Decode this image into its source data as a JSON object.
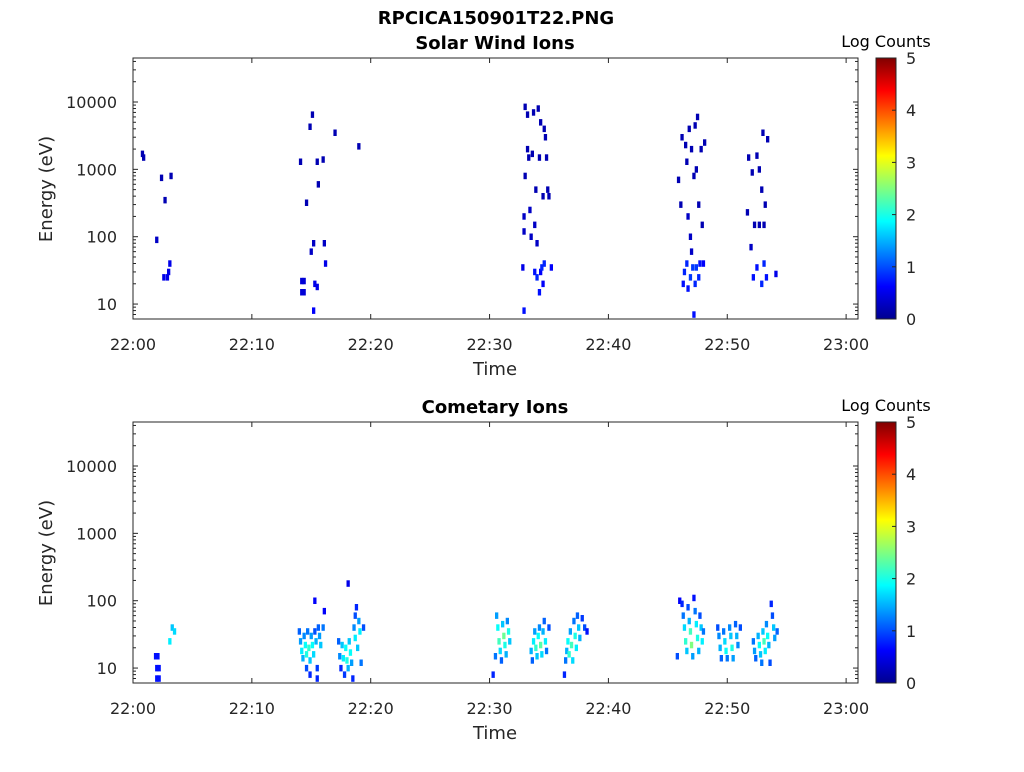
{
  "figure": {
    "title": "RPCICA150901T22.PNG"
  },
  "colorbar": {
    "label": "Log Counts",
    "ticks": [
      "0",
      "1",
      "2",
      "3",
      "4",
      "5"
    ],
    "range": [
      0,
      5
    ],
    "colormap": "jet"
  },
  "chart_data": [
    {
      "type": "heatmap",
      "title": "Solar Wind Ions",
      "xlabel": "Time",
      "ylabel": "Energy (eV)",
      "x_ticks": [
        "22:00",
        "22:10",
        "22:20",
        "22:30",
        "22:40",
        "22:50",
        "23:00"
      ],
      "xlim_minutes": [
        0,
        61
      ],
      "y_scale": "log",
      "y_ticks": [
        "10",
        "100",
        "1000",
        "10000"
      ],
      "ylim": [
        6,
        45000
      ],
      "cells": [
        [
          0.8,
          1700,
          0.2
        ],
        [
          0.9,
          1500,
          0.2
        ],
        [
          2.0,
          90,
          0.3
        ],
        [
          2.4,
          750,
          0.2
        ],
        [
          2.6,
          25,
          0.5
        ],
        [
          2.7,
          350,
          0.2
        ],
        [
          2.9,
          25,
          0.5
        ],
        [
          3.0,
          30,
          0.5
        ],
        [
          3.1,
          40,
          0.5
        ],
        [
          3.2,
          800,
          0.2
        ],
        [
          14.1,
          1300,
          0.2
        ],
        [
          14.2,
          22,
          0.4
        ],
        [
          14.2,
          15,
          0.4
        ],
        [
          14.4,
          22,
          0.4
        ],
        [
          14.4,
          15,
          0.4
        ],
        [
          14.6,
          320,
          0.2
        ],
        [
          14.9,
          4300,
          0.2
        ],
        [
          15.0,
          60,
          0.3
        ],
        [
          15.1,
          6500,
          0.2
        ],
        [
          15.2,
          8,
          0.6
        ],
        [
          15.2,
          80,
          0.3
        ],
        [
          15.3,
          20,
          0.5
        ],
        [
          15.5,
          18,
          0.5
        ],
        [
          15.5,
          1300,
          0.2
        ],
        [
          15.6,
          600,
          0.2
        ],
        [
          16.0,
          1400,
          0.2
        ],
        [
          16.1,
          80,
          0.3
        ],
        [
          16.2,
          40,
          0.5
        ],
        [
          17.0,
          3500,
          0.2
        ],
        [
          19.0,
          2200,
          0.2
        ],
        [
          32.8,
          35,
          0.5
        ],
        [
          32.9,
          8,
          0.7
        ],
        [
          32.9,
          120,
          0.3
        ],
        [
          32.9,
          200,
          0.3
        ],
        [
          33.0,
          800,
          0.2
        ],
        [
          33.0,
          8500,
          0.2
        ],
        [
          33.2,
          6500,
          0.2
        ],
        [
          33.2,
          2000,
          0.2
        ],
        [
          33.3,
          1500,
          0.2
        ],
        [
          33.4,
          250,
          0.3
        ],
        [
          33.5,
          100,
          0.3
        ],
        [
          33.6,
          1700,
          0.2
        ],
        [
          33.7,
          7000,
          0.2
        ],
        [
          33.8,
          30,
          0.7
        ],
        [
          33.8,
          150,
          0.3
        ],
        [
          33.9,
          500,
          0.2
        ],
        [
          34.0,
          25,
          0.8
        ],
        [
          34.0,
          80,
          0.3
        ],
        [
          34.1,
          8000,
          0.2
        ],
        [
          34.2,
          15,
          0.7
        ],
        [
          34.2,
          1500,
          0.2
        ],
        [
          34.3,
          30,
          0.6
        ],
        [
          34.3,
          5000,
          0.2
        ],
        [
          34.4,
          35,
          0.8
        ],
        [
          34.5,
          20,
          0.6
        ],
        [
          34.5,
          400,
          0.2
        ],
        [
          34.6,
          40,
          0.8
        ],
        [
          34.6,
          4000,
          0.2
        ],
        [
          34.7,
          3000,
          0.2
        ],
        [
          34.8,
          1500,
          0.2
        ],
        [
          34.9,
          500,
          0.2
        ],
        [
          35.0,
          400,
          0.2
        ],
        [
          35.2,
          35,
          0.6
        ],
        [
          45.9,
          700,
          0.2
        ],
        [
          46.1,
          300,
          0.2
        ],
        [
          46.2,
          3000,
          0.2
        ],
        [
          46.3,
          20,
          0.7
        ],
        [
          46.4,
          30,
          0.8
        ],
        [
          46.5,
          2300,
          0.2
        ],
        [
          46.6,
          1300,
          0.2
        ],
        [
          46.6,
          40,
          0.8
        ],
        [
          46.7,
          17,
          0.7
        ],
        [
          46.7,
          200,
          0.3
        ],
        [
          46.8,
          4000,
          0.2
        ],
        [
          46.9,
          25,
          0.9
        ],
        [
          46.9,
          100,
          0.3
        ],
        [
          47.0,
          2000,
          0.2
        ],
        [
          47.0,
          60,
          0.3
        ],
        [
          47.1,
          35,
          0.9
        ],
        [
          47.2,
          800,
          0.2
        ],
        [
          47.2,
          7,
          0.7
        ],
        [
          47.3,
          20,
          0.8
        ],
        [
          47.3,
          4500,
          0.2
        ],
        [
          47.4,
          35,
          0.9
        ],
        [
          47.4,
          1000,
          0.2
        ],
        [
          47.5,
          6000,
          0.2
        ],
        [
          47.6,
          25,
          0.8
        ],
        [
          47.6,
          300,
          0.2
        ],
        [
          47.7,
          40,
          0.7
        ],
        [
          47.8,
          2000,
          0.2
        ],
        [
          47.9,
          150,
          0.2
        ],
        [
          48.0,
          40,
          0.6
        ],
        [
          48.1,
          2500,
          0.2
        ],
        [
          51.7,
          230,
          0.2
        ],
        [
          51.8,
          1500,
          0.2
        ],
        [
          52.0,
          70,
          0.3
        ],
        [
          52.1,
          900,
          0.2
        ],
        [
          52.2,
          25,
          0.7
        ],
        [
          52.3,
          150,
          0.2
        ],
        [
          52.5,
          1600,
          0.2
        ],
        [
          52.5,
          35,
          0.7
        ],
        [
          52.7,
          1000,
          0.2
        ],
        [
          52.7,
          150,
          0.2
        ],
        [
          52.9,
          20,
          0.8
        ],
        [
          52.9,
          500,
          0.2
        ],
        [
          53.0,
          3500,
          0.2
        ],
        [
          53.1,
          40,
          0.8
        ],
        [
          53.1,
          150,
          0.2
        ],
        [
          53.2,
          300,
          0.2
        ],
        [
          53.3,
          25,
          0.7
        ],
        [
          53.4,
          2800,
          0.2
        ],
        [
          54.1,
          28,
          0.5
        ]
      ]
    },
    {
      "type": "heatmap",
      "title": "Cometary Ions",
      "xlabel": "Time",
      "ylabel": "Energy (eV)",
      "x_ticks": [
        "22:00",
        "22:10",
        "22:20",
        "22:30",
        "22:40",
        "22:50",
        "23:00"
      ],
      "xlim_minutes": [
        0,
        61
      ],
      "y_scale": "log",
      "y_ticks": [
        "10",
        "100",
        "1000",
        "10000"
      ],
      "ylim": [
        6,
        45000
      ],
      "cells": [
        [
          1.9,
          15,
          0.7
        ],
        [
          2.0,
          10,
          0.7
        ],
        [
          2.0,
          7,
          0.7
        ],
        [
          2.1,
          15,
          0.7
        ],
        [
          2.2,
          10,
          0.7
        ],
        [
          2.2,
          7,
          0.7
        ],
        [
          3.1,
          25,
          1.8
        ],
        [
          3.3,
          40,
          1.6
        ],
        [
          3.5,
          35,
          1.7
        ],
        [
          14.0,
          35,
          1.1
        ],
        [
          14.1,
          25,
          1.4
        ],
        [
          14.2,
          18,
          1.8
        ],
        [
          14.3,
          14,
          1.5
        ],
        [
          14.4,
          30,
          1.3
        ],
        [
          14.5,
          22,
          1.9
        ],
        [
          14.6,
          16,
          2.0
        ],
        [
          14.6,
          10,
          1.0
        ],
        [
          14.7,
          35,
          1.2
        ],
        [
          14.8,
          20,
          2.1
        ],
        [
          14.9,
          13,
          1.6
        ],
        [
          14.9,
          8,
          0.8
        ],
        [
          15.0,
          30,
          1.4
        ],
        [
          15.1,
          22,
          1.9
        ],
        [
          15.2,
          16,
          1.7
        ],
        [
          15.3,
          35,
          1.0
        ],
        [
          15.3,
          100,
          0.6
        ],
        [
          15.4,
          25,
          1.5
        ],
        [
          15.5,
          10,
          0.9
        ],
        [
          15.5,
          7,
          0.8
        ],
        [
          15.6,
          40,
          1.1
        ],
        [
          15.7,
          30,
          1.4
        ],
        [
          15.8,
          22,
          1.6
        ],
        [
          16.0,
          40,
          1.2
        ],
        [
          16.1,
          70,
          0.6
        ],
        [
          17.3,
          25,
          1.1
        ],
        [
          17.4,
          15,
          1.3
        ],
        [
          17.5,
          10,
          0.8
        ],
        [
          17.6,
          22,
          1.6
        ],
        [
          17.7,
          14,
          1.8
        ],
        [
          17.8,
          8,
          0.9
        ],
        [
          17.9,
          20,
          1.9
        ],
        [
          18.0,
          13,
          2.0
        ],
        [
          18.1,
          180,
          0.5
        ],
        [
          18.1,
          10,
          1.5
        ],
        [
          18.2,
          25,
          1.6
        ],
        [
          18.3,
          17,
          1.9
        ],
        [
          18.4,
          12,
          1.4
        ],
        [
          18.5,
          7,
          0.8
        ],
        [
          18.6,
          40,
          1.3
        ],
        [
          18.7,
          60,
          1.0
        ],
        [
          18.7,
          28,
          1.8
        ],
        [
          18.8,
          80,
          0.8
        ],
        [
          18.9,
          20,
          1.6
        ],
        [
          19.0,
          50,
          1.4
        ],
        [
          19.1,
          35,
          1.8
        ],
        [
          19.2,
          12,
          1.2
        ],
        [
          19.4,
          40,
          1.0
        ],
        [
          30.3,
          8,
          0.8
        ],
        [
          30.5,
          15,
          1.2
        ],
        [
          30.6,
          60,
          1.4
        ],
        [
          30.7,
          40,
          1.9
        ],
        [
          30.8,
          25,
          2.2
        ],
        [
          30.9,
          18,
          1.7
        ],
        [
          31.0,
          13,
          1.1
        ],
        [
          31.1,
          45,
          1.6
        ],
        [
          31.2,
          30,
          2.4
        ],
        [
          31.3,
          22,
          2.0
        ],
        [
          31.4,
          16,
          1.5
        ],
        [
          31.5,
          50,
          1.3
        ],
        [
          31.6,
          35,
          2.0
        ],
        [
          31.7,
          25,
          1.6
        ],
        [
          33.5,
          18,
          1.5
        ],
        [
          33.6,
          13,
          1.1
        ],
        [
          33.7,
          25,
          1.8
        ],
        [
          33.8,
          35,
          1.4
        ],
        [
          33.9,
          20,
          2.1
        ],
        [
          34.0,
          15,
          1.6
        ],
        [
          34.1,
          30,
          1.9
        ],
        [
          34.2,
          40,
          1.3
        ],
        [
          34.3,
          22,
          2.3
        ],
        [
          34.4,
          16,
          1.7
        ],
        [
          34.5,
          35,
          1.5
        ],
        [
          34.6,
          50,
          1.1
        ],
        [
          34.7,
          25,
          1.8
        ],
        [
          34.8,
          18,
          1.2
        ],
        [
          35.0,
          40,
          1.0
        ],
        [
          36.3,
          8,
          0.8
        ],
        [
          36.4,
          13,
          1.2
        ],
        [
          36.5,
          18,
          1.5
        ],
        [
          36.6,
          25,
          1.9
        ],
        [
          36.7,
          16,
          2.1
        ],
        [
          36.8,
          35,
          1.4
        ],
        [
          36.9,
          22,
          2.2
        ],
        [
          37.0,
          13,
          1.7
        ],
        [
          37.1,
          50,
          1.2
        ],
        [
          37.2,
          30,
          2.0
        ],
        [
          37.3,
          20,
          1.8
        ],
        [
          37.4,
          60,
          1.1
        ],
        [
          37.5,
          40,
          1.6
        ],
        [
          37.6,
          28,
          1.5
        ],
        [
          37.8,
          55,
          0.9
        ],
        [
          38.0,
          40,
          1.0
        ],
        [
          38.2,
          35,
          0.7
        ],
        [
          45.8,
          15,
          1.0
        ],
        [
          46.0,
          100,
          0.6
        ],
        [
          46.2,
          90,
          0.8
        ],
        [
          46.3,
          60,
          1.2
        ],
        [
          46.4,
          40,
          1.7
        ],
        [
          46.5,
          25,
          2.1
        ],
        [
          46.6,
          18,
          1.6
        ],
        [
          46.7,
          80,
          1.0
        ],
        [
          46.8,
          50,
          1.5
        ],
        [
          46.9,
          35,
          2.2
        ],
        [
          47.0,
          22,
          2.5
        ],
        [
          47.1,
          15,
          1.4
        ],
        [
          47.2,
          110,
          0.7
        ],
        [
          47.3,
          70,
          1.2
        ],
        [
          47.4,
          45,
          1.8
        ],
        [
          47.5,
          28,
          2.0
        ],
        [
          47.6,
          18,
          1.5
        ],
        [
          47.7,
          60,
          1.0
        ],
        [
          47.8,
          40,
          1.6
        ],
        [
          47.9,
          25,
          1.8
        ],
        [
          48.0,
          35,
          1.2
        ],
        [
          49.2,
          40,
          1.0
        ],
        [
          49.3,
          30,
          1.3
        ],
        [
          49.4,
          20,
          1.5
        ],
        [
          49.5,
          14,
          1.1
        ],
        [
          49.7,
          35,
          1.2
        ],
        [
          49.8,
          25,
          1.7
        ],
        [
          49.9,
          18,
          1.9
        ],
        [
          50.0,
          14,
          1.2
        ],
        [
          50.2,
          40,
          1.3
        ],
        [
          50.3,
          30,
          1.6
        ],
        [
          50.4,
          20,
          2.0
        ],
        [
          50.5,
          14,
          1.4
        ],
        [
          50.7,
          45,
          1.1
        ],
        [
          50.8,
          30,
          1.5
        ],
        [
          50.9,
          22,
          1.3
        ],
        [
          51.1,
          40,
          1.0
        ],
        [
          52.2,
          25,
          1.2
        ],
        [
          52.3,
          18,
          1.4
        ],
        [
          52.4,
          14,
          1.1
        ],
        [
          52.6,
          30,
          1.5
        ],
        [
          52.7,
          22,
          1.9
        ],
        [
          52.8,
          16,
          1.6
        ],
        [
          52.9,
          12,
          1.2
        ],
        [
          53.0,
          35,
          1.6
        ],
        [
          53.1,
          25,
          2.2
        ],
        [
          53.2,
          18,
          1.8
        ],
        [
          53.3,
          45,
          1.3
        ],
        [
          53.4,
          30,
          1.9
        ],
        [
          53.5,
          22,
          1.5
        ],
        [
          53.6,
          12,
          1.0
        ],
        [
          53.7,
          90,
          0.8
        ],
        [
          53.8,
          60,
          1.0
        ],
        [
          53.9,
          40,
          1.6
        ],
        [
          54.0,
          28,
          1.4
        ],
        [
          54.2,
          35,
          1.1
        ]
      ]
    }
  ]
}
